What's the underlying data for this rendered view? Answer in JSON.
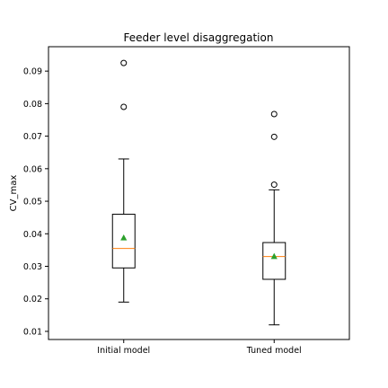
{
  "chart_data": {
    "type": "box",
    "title": "Feeder level disaggregation",
    "xlabel": "",
    "ylabel": "CV_max",
    "categories": [
      "Initial model",
      "Tuned model"
    ],
    "ylim": [
      0.0075,
      0.0975
    ],
    "yticks": [
      "0.01",
      "0.02",
      "0.03",
      "0.04",
      "0.05",
      "0.06",
      "0.07",
      "0.08",
      "0.09"
    ],
    "grid": false,
    "boxes": [
      {
        "category": "Initial model",
        "whisker_low": 0.019,
        "q1": 0.0295,
        "median": 0.0355,
        "q3": 0.046,
        "whisker_high": 0.063,
        "mean": 0.0388,
        "outliers": [
          0.079,
          0.0925
        ]
      },
      {
        "category": "Tuned model",
        "whisker_low": 0.012,
        "q1": 0.026,
        "median": 0.033,
        "q3": 0.0373,
        "whisker_high": 0.0535,
        "mean": 0.0331,
        "outliers": [
          0.0551,
          0.0698,
          0.0768
        ]
      }
    ],
    "colors": {
      "box": "#000000",
      "median": "#ff7f0e",
      "mean": "#2ca02c",
      "outlier": "#000000"
    }
  }
}
